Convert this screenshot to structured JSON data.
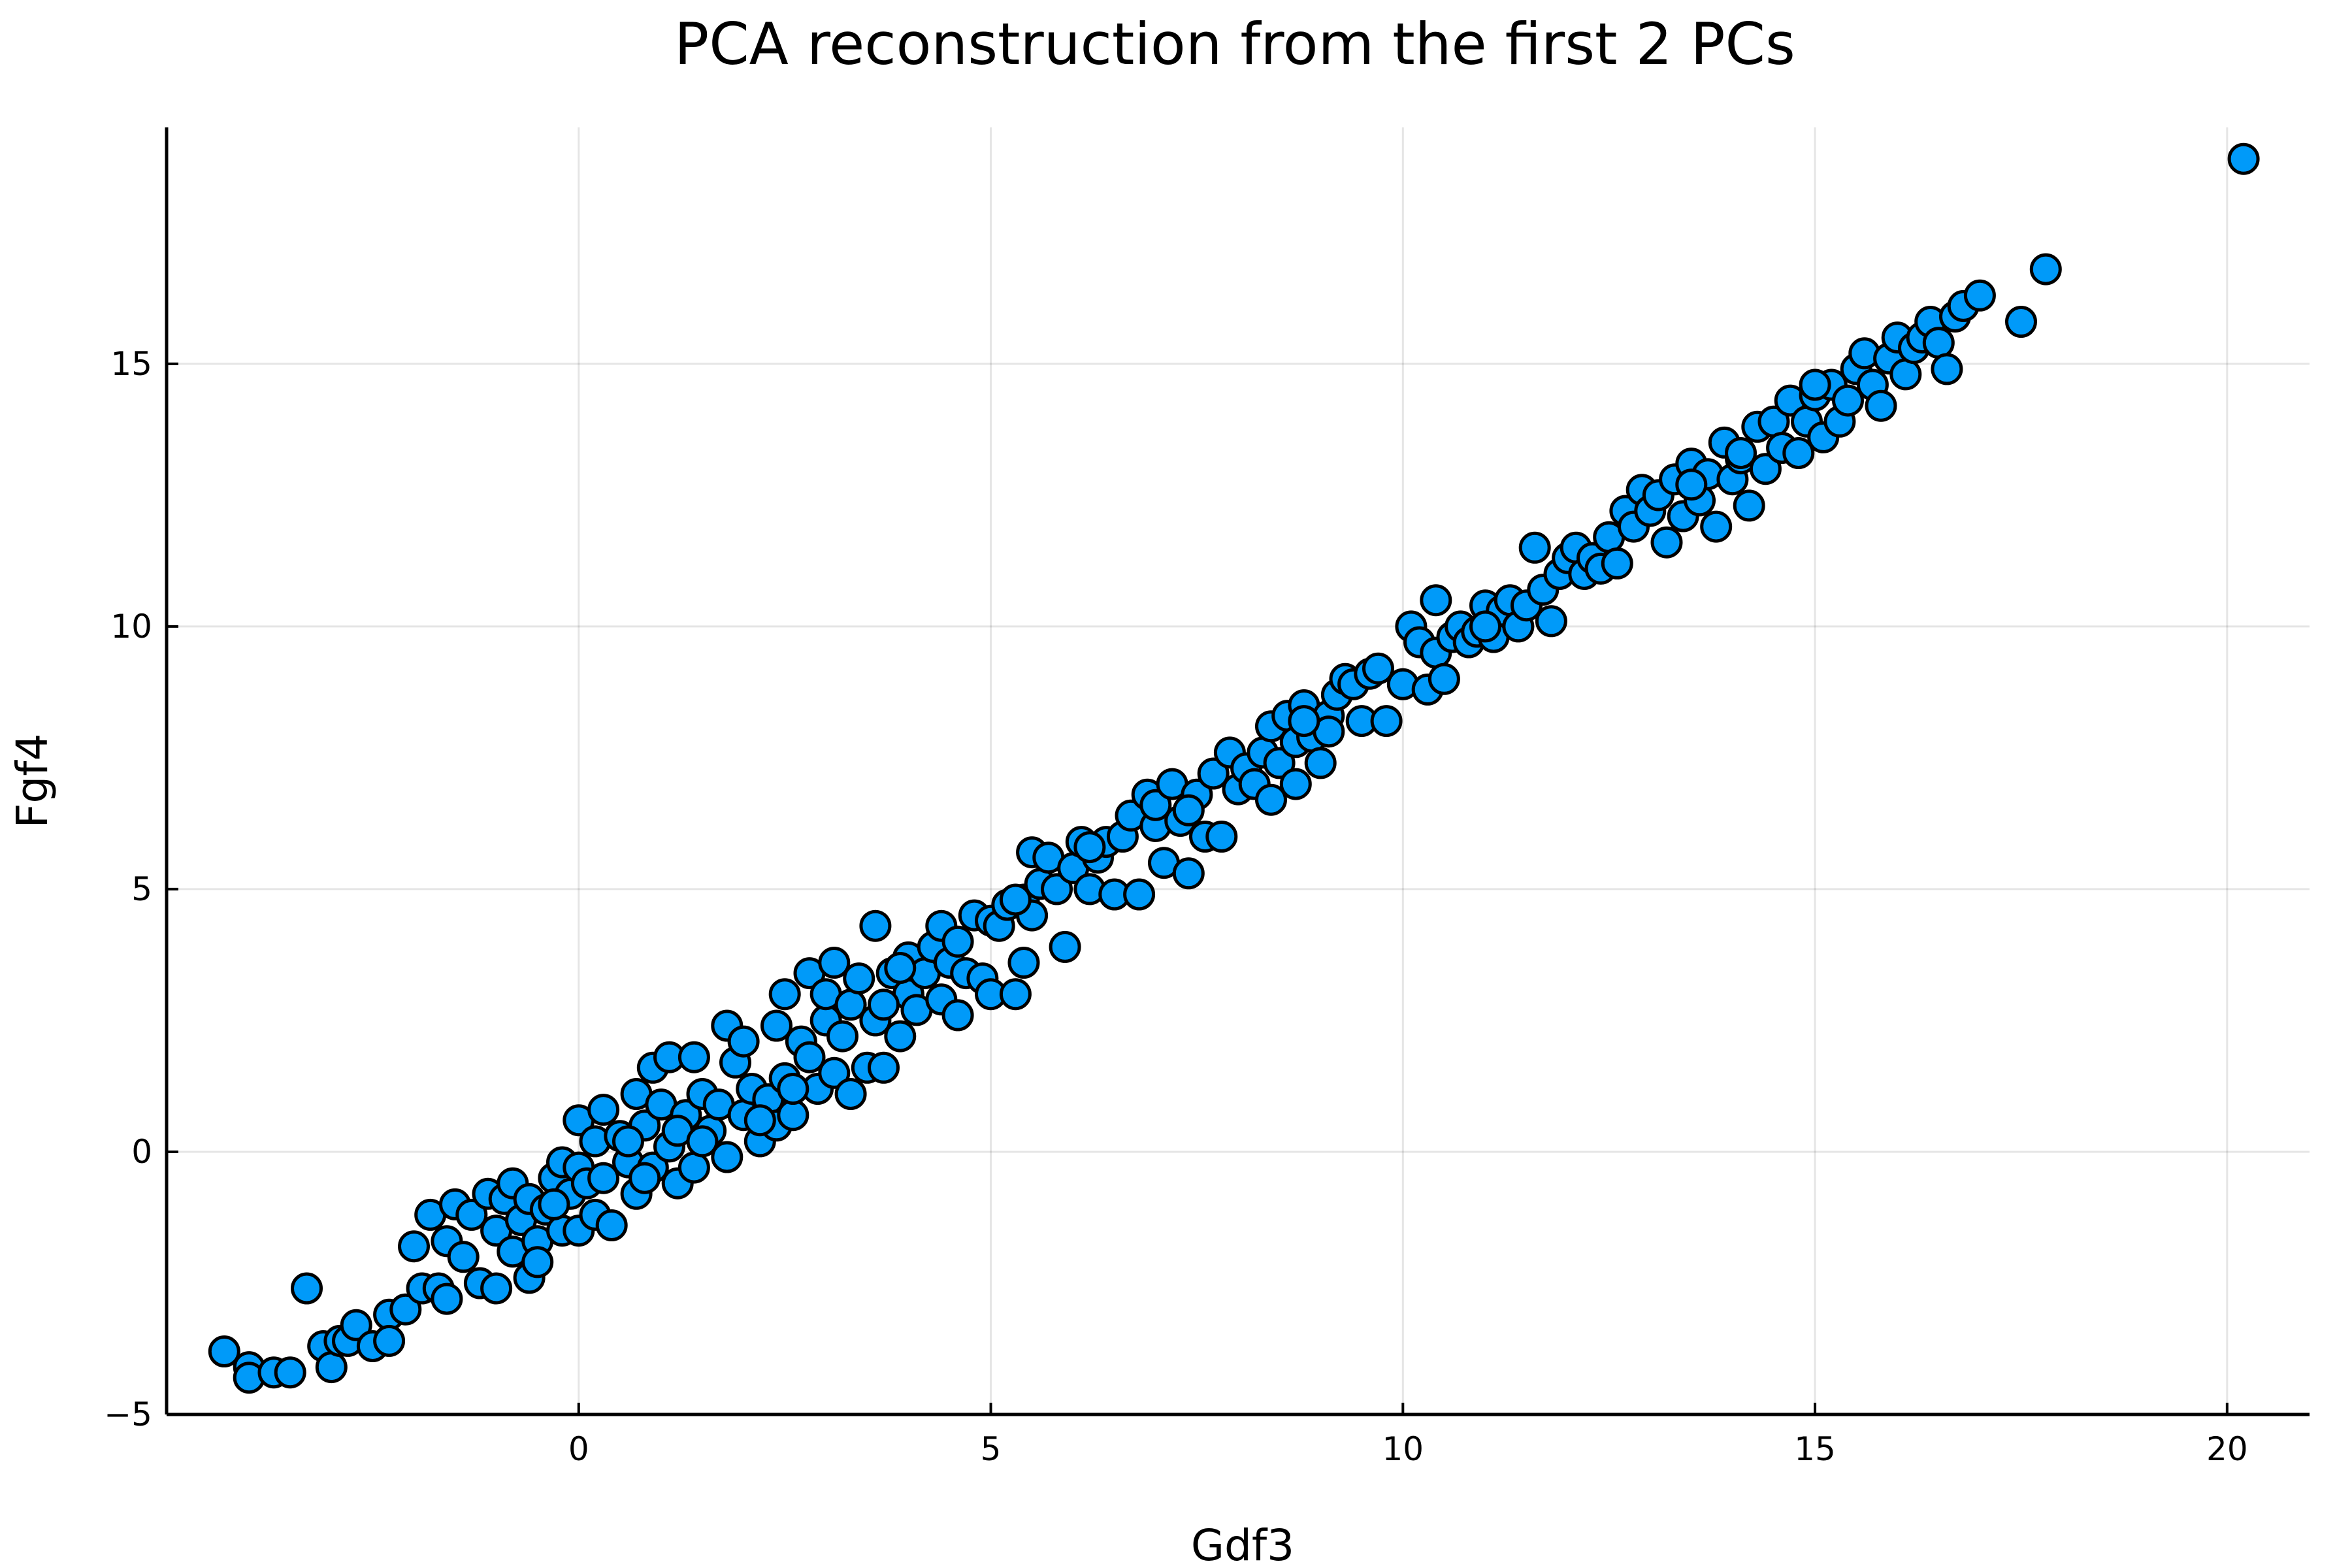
{
  "chart_data": {
    "type": "scatter",
    "title": "PCA reconstruction from the first 2 PCs",
    "xlabel": "Gdf3",
    "ylabel": "Fgf4",
    "xlim": [
      -5,
      21
    ],
    "ylim": [
      -5,
      19.5
    ],
    "xticks": [
      0,
      5,
      10,
      15,
      20
    ],
    "yticks": [
      -5,
      0,
      5,
      10,
      15
    ],
    "grid": true,
    "legend": "none",
    "marker_color": "#009af9",
    "marker_edge_color": "#000000",
    "points": [
      [
        -4.3,
        -3.8
      ],
      [
        -4.0,
        -4.1
      ],
      [
        -4.0,
        -4.3
      ],
      [
        -3.7,
        -4.2
      ],
      [
        -3.5,
        -4.2
      ],
      [
        -3.3,
        -2.6
      ],
      [
        -3.1,
        -3.7
      ],
      [
        -3.0,
        -4.1
      ],
      [
        -2.9,
        -3.6
      ],
      [
        -2.8,
        -3.6
      ],
      [
        -2.7,
        -3.3
      ],
      [
        -2.5,
        -3.7
      ],
      [
        -2.3,
        -3.1
      ],
      [
        -2.3,
        -3.6
      ],
      [
        -2.1,
        -3.0
      ],
      [
        -2.0,
        -1.8
      ],
      [
        -1.9,
        -2.6
      ],
      [
        -1.8,
        -1.2
      ],
      [
        -1.7,
        -2.6
      ],
      [
        -1.6,
        -1.7
      ],
      [
        -1.6,
        -2.8
      ],
      [
        -1.5,
        -1.0
      ],
      [
        -1.4,
        -2.0
      ],
      [
        -1.3,
        -1.2
      ],
      [
        -1.2,
        -2.5
      ],
      [
        -1.1,
        -0.8
      ],
      [
        -1.0,
        -1.5
      ],
      [
        -1.0,
        -2.6
      ],
      [
        -0.9,
        -0.9
      ],
      [
        -0.8,
        -1.9
      ],
      [
        -0.8,
        -0.6
      ],
      [
        -0.7,
        -1.3
      ],
      [
        -0.6,
        -2.4
      ],
      [
        -0.6,
        -0.9
      ],
      [
        -0.5,
        -1.7
      ],
      [
        -0.4,
        -1.1
      ],
      [
        -0.3,
        -0.5
      ],
      [
        -0.2,
        -1.5
      ],
      [
        -0.2,
        -0.2
      ],
      [
        -0.1,
        -0.8
      ],
      [
        0.0,
        -0.3
      ],
      [
        0.0,
        -1.5
      ],
      [
        0.0,
        0.6
      ],
      [
        0.1,
        -0.6
      ],
      [
        0.2,
        0.2
      ],
      [
        0.2,
        -1.2
      ],
      [
        0.3,
        0.8
      ],
      [
        0.3,
        -0.5
      ],
      [
        0.4,
        -1.4
      ],
      [
        0.5,
        0.3
      ],
      [
        0.6,
        -0.2
      ],
      [
        0.7,
        1.1
      ],
      [
        0.7,
        -0.8
      ],
      [
        0.8,
        0.5
      ],
      [
        0.9,
        1.6
      ],
      [
        0.9,
        -0.3
      ],
      [
        1.0,
        0.9
      ],
      [
        1.1,
        0.1
      ],
      [
        1.1,
        1.8
      ],
      [
        1.2,
        -0.6
      ],
      [
        1.3,
        0.7
      ],
      [
        1.4,
        1.8
      ],
      [
        1.4,
        -0.3
      ],
      [
        1.5,
        1.1
      ],
      [
        1.6,
        0.4
      ],
      [
        1.7,
        0.9
      ],
      [
        1.8,
        2.4
      ],
      [
        1.8,
        -0.1
      ],
      [
        1.9,
        1.7
      ],
      [
        2.0,
        0.7
      ],
      [
        2.0,
        2.1
      ],
      [
        2.1,
        1.2
      ],
      [
        2.2,
        0.2
      ],
      [
        2.3,
        1.0
      ],
      [
        2.4,
        2.4
      ],
      [
        2.4,
        0.5
      ],
      [
        2.5,
        3.0
      ],
      [
        2.5,
        1.4
      ],
      [
        2.6,
        0.7
      ],
      [
        2.7,
        2.1
      ],
      [
        2.8,
        1.8
      ],
      [
        2.8,
        3.4
      ],
      [
        2.9,
        1.2
      ],
      [
        3.0,
        2.5
      ],
      [
        3.0,
        3.0
      ],
      [
        3.1,
        1.5
      ],
      [
        3.1,
        3.6
      ],
      [
        3.2,
        2.2
      ],
      [
        3.3,
        1.1
      ],
      [
        3.3,
        2.8
      ],
      [
        3.4,
        3.3
      ],
      [
        3.5,
        1.6
      ],
      [
        3.6,
        2.5
      ],
      [
        3.6,
        4.3
      ],
      [
        3.7,
        1.6
      ],
      [
        3.8,
        3.4
      ],
      [
        3.9,
        2.2
      ],
      [
        4.0,
        3.0
      ],
      [
        4.0,
        3.7
      ],
      [
        4.1,
        2.7
      ],
      [
        4.2,
        3.4
      ],
      [
        4.3,
        3.9
      ],
      [
        4.4,
        2.9
      ],
      [
        4.4,
        4.3
      ],
      [
        4.5,
        3.6
      ],
      [
        4.6,
        2.6
      ],
      [
        4.7,
        3.4
      ],
      [
        4.8,
        4.5
      ],
      [
        4.9,
        3.3
      ],
      [
        5.0,
        4.4
      ],
      [
        5.0,
        3.0
      ],
      [
        5.1,
        4.3
      ],
      [
        5.2,
        4.7
      ],
      [
        5.3,
        3.0
      ],
      [
        5.4,
        3.6
      ],
      [
        5.4,
        4.8
      ],
      [
        5.5,
        4.5
      ],
      [
        5.5,
        5.7
      ],
      [
        5.6,
        5.1
      ],
      [
        5.7,
        5.6
      ],
      [
        5.8,
        5.0
      ],
      [
        5.9,
        3.9
      ],
      [
        6.0,
        5.4
      ],
      [
        6.1,
        5.9
      ],
      [
        6.2,
        5.0
      ],
      [
        6.3,
        5.6
      ],
      [
        6.4,
        5.9
      ],
      [
        6.5,
        4.9
      ],
      [
        6.6,
        6.0
      ],
      [
        6.7,
        6.4
      ],
      [
        6.8,
        4.9
      ],
      [
        6.9,
        6.8
      ],
      [
        7.0,
        6.2
      ],
      [
        7.0,
        6.6
      ],
      [
        7.1,
        5.5
      ],
      [
        7.2,
        7.0
      ],
      [
        7.3,
        6.3
      ],
      [
        7.4,
        5.3
      ],
      [
        7.5,
        6.8
      ],
      [
        7.6,
        6.0
      ],
      [
        7.7,
        7.2
      ],
      [
        7.8,
        6.0
      ],
      [
        7.9,
        7.6
      ],
      [
        8.0,
        6.9
      ],
      [
        8.1,
        7.3
      ],
      [
        8.2,
        7.0
      ],
      [
        8.3,
        7.6
      ],
      [
        8.4,
        6.7
      ],
      [
        8.4,
        8.1
      ],
      [
        8.5,
        7.4
      ],
      [
        8.6,
        8.3
      ],
      [
        8.7,
        7.8
      ],
      [
        8.7,
        7.0
      ],
      [
        8.8,
        8.5
      ],
      [
        8.9,
        7.9
      ],
      [
        9.0,
        7.4
      ],
      [
        9.1,
        8.3
      ],
      [
        9.2,
        8.7
      ],
      [
        9.3,
        9.0
      ],
      [
        9.4,
        8.9
      ],
      [
        9.5,
        8.2
      ],
      [
        9.6,
        9.1
      ],
      [
        9.7,
        9.2
      ],
      [
        9.8,
        8.2
      ],
      [
        10.0,
        8.9
      ],
      [
        10.1,
        10.0
      ],
      [
        10.2,
        9.7
      ],
      [
        10.3,
        8.8
      ],
      [
        10.4,
        9.5
      ],
      [
        10.4,
        10.5
      ],
      [
        10.5,
        9.0
      ],
      [
        10.6,
        9.8
      ],
      [
        10.7,
        10.0
      ],
      [
        10.8,
        9.7
      ],
      [
        10.9,
        9.9
      ],
      [
        11.0,
        10.4
      ],
      [
        11.1,
        9.8
      ],
      [
        11.2,
        10.3
      ],
      [
        11.3,
        10.5
      ],
      [
        11.4,
        10.0
      ],
      [
        11.5,
        10.4
      ],
      [
        11.6,
        11.5
      ],
      [
        11.7,
        10.7
      ],
      [
        11.8,
        10.1
      ],
      [
        11.9,
        11.0
      ],
      [
        12.0,
        11.3
      ],
      [
        12.1,
        11.5
      ],
      [
        12.2,
        11.0
      ],
      [
        12.3,
        11.3
      ],
      [
        12.4,
        11.1
      ],
      [
        12.5,
        11.7
      ],
      [
        12.6,
        11.2
      ],
      [
        12.7,
        12.2
      ],
      [
        12.8,
        11.9
      ],
      [
        12.9,
        12.6
      ],
      [
        13.0,
        12.2
      ],
      [
        13.1,
        12.5
      ],
      [
        13.2,
        11.6
      ],
      [
        13.3,
        12.8
      ],
      [
        13.4,
        12.1
      ],
      [
        13.5,
        13.1
      ],
      [
        13.6,
        12.4
      ],
      [
        13.7,
        12.9
      ],
      [
        13.8,
        11.9
      ],
      [
        13.9,
        13.5
      ],
      [
        14.0,
        12.8
      ],
      [
        14.1,
        13.2
      ],
      [
        14.2,
        12.3
      ],
      [
        14.3,
        13.8
      ],
      [
        14.4,
        13.0
      ],
      [
        14.5,
        13.9
      ],
      [
        14.6,
        13.4
      ],
      [
        14.7,
        14.3
      ],
      [
        14.8,
        13.3
      ],
      [
        14.9,
        13.9
      ],
      [
        15.0,
        14.4
      ],
      [
        15.1,
        13.6
      ],
      [
        15.2,
        14.6
      ],
      [
        15.3,
        13.9
      ],
      [
        15.4,
        14.3
      ],
      [
        15.5,
        14.9
      ],
      [
        15.6,
        15.2
      ],
      [
        15.7,
        14.6
      ],
      [
        15.8,
        14.2
      ],
      [
        15.9,
        15.1
      ],
      [
        16.0,
        15.5
      ],
      [
        16.1,
        14.8
      ],
      [
        16.2,
        15.3
      ],
      [
        16.3,
        15.5
      ],
      [
        16.4,
        15.8
      ],
      [
        16.5,
        15.4
      ],
      [
        16.6,
        14.9
      ],
      [
        16.7,
        15.9
      ],
      [
        16.8,
        16.1
      ],
      [
        17.0,
        16.3
      ],
      [
        17.5,
        15.8
      ],
      [
        17.8,
        16.8
      ],
      [
        20.2,
        18.9
      ],
      [
        -0.5,
        -2.1
      ],
      [
        0.6,
        0.2
      ],
      [
        1.2,
        0.4
      ],
      [
        2.6,
        1.2
      ],
      [
        3.9,
        3.5
      ],
      [
        4.6,
        4.0
      ],
      [
        6.2,
        5.8
      ],
      [
        7.4,
        6.5
      ],
      [
        9.1,
        8.0
      ],
      [
        11.0,
        10.0
      ],
      [
        13.5,
        12.7
      ],
      [
        14.1,
        13.3
      ],
      [
        15.0,
        14.6
      ],
      [
        1.5,
        0.2
      ],
      [
        2.2,
        0.6
      ],
      [
        0.8,
        -0.5
      ],
      [
        -0.3,
        -1.0
      ],
      [
        3.7,
        2.8
      ],
      [
        5.3,
        4.8
      ],
      [
        8.8,
        8.2
      ]
    ]
  }
}
